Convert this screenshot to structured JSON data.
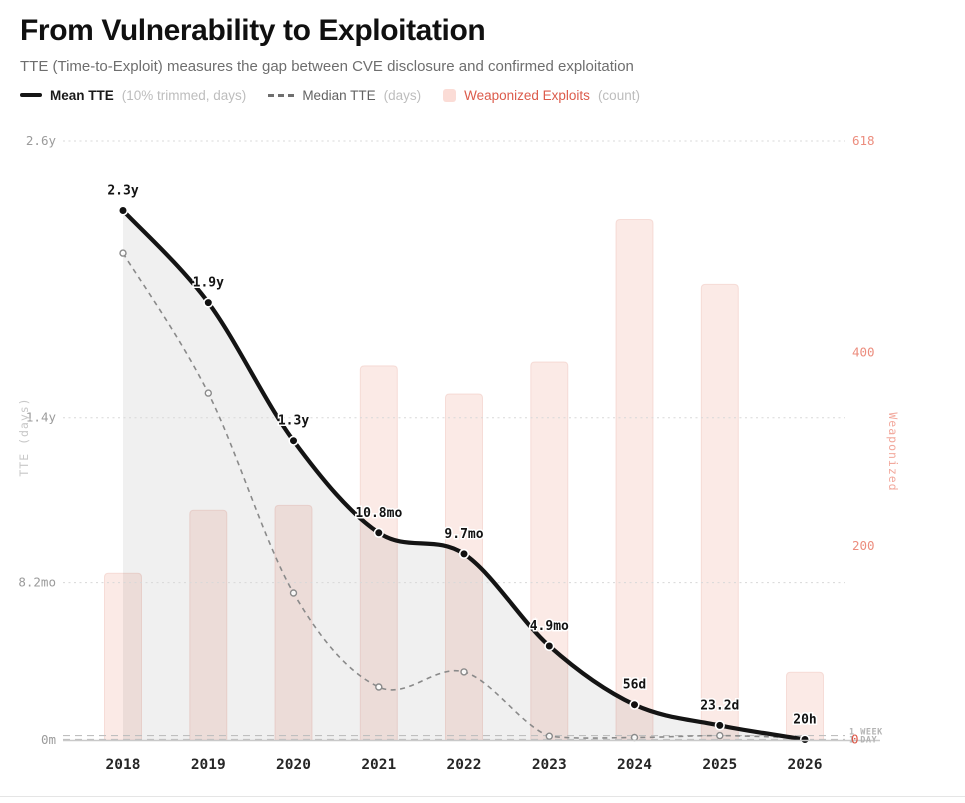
{
  "header": {
    "title": "From Vulnerability to Exploitation",
    "subtitle": "TTE (Time-to-Exploit) measures the gap between CVE disclosure and confirmed exploitation"
  },
  "legend": {
    "position": "top-left",
    "items": [
      {
        "id": "mean",
        "label": "Mean TTE",
        "sub": "(10% trimmed, days)",
        "swatch": "solid-line",
        "color": "#161616"
      },
      {
        "id": "median",
        "label": "Median TTE",
        "sub": "(days)",
        "swatch": "dashed-line",
        "color": "#8a8a8a"
      },
      {
        "id": "weaponized",
        "label": "Weaponized Exploits",
        "sub": "(count)",
        "swatch": "square",
        "color": "#fbdcd6",
        "label_color": "#dc5b4b"
      }
    ]
  },
  "chart_data": {
    "type": "combo (line + dashed line + bar, dual y-axes)",
    "categories": [
      "2018",
      "2019",
      "2020",
      "2021",
      "2022",
      "2023",
      "2024",
      "2025",
      "2026"
    ],
    "series": [
      {
        "name": "Mean TTE",
        "type": "line",
        "unit": "days",
        "axis": "left",
        "values": [
          839.5,
          693.5,
          474.5,
          328.5,
          295,
          149,
          56,
          23.2,
          0.83
        ],
        "point_labels": [
          "2.3y",
          "1.9y",
          "1.3y",
          "10.8mo",
          "9.7mo",
          "4.9mo",
          "56d",
          "23.2d",
          "20h"
        ]
      },
      {
        "name": "Median TTE",
        "type": "dashed-line",
        "unit": "days",
        "axis": "left",
        "values_estimated_from_pixels": true,
        "values": [
          772,
          550,
          233,
          84,
          108,
          6,
          4,
          7,
          3
        ]
      },
      {
        "name": "Weaponized Exploits",
        "type": "bar",
        "unit": "count",
        "axis": "right",
        "values_estimated_from_pixels": true,
        "values": [
          172,
          237,
          242,
          386,
          357,
          390,
          537,
          470,
          70
        ]
      }
    ],
    "left_axis": {
      "title": "TTE (days)",
      "max_days": 949.7,
      "ticks": [
        {
          "label": "2.6y",
          "days": 949.7
        },
        {
          "label": "1.4y",
          "days": 511
        },
        {
          "label": "8.2mo",
          "days": 249.5
        },
        {
          "label": "0m",
          "days": 0
        }
      ]
    },
    "right_axis": {
      "title": "Weaponized",
      "max": 618,
      "ticks": [
        {
          "label": "618",
          "value": 618
        },
        {
          "label": "400",
          "value": 400
        },
        {
          "label": "200",
          "value": 200
        },
        {
          "label": "0",
          "value": 0
        }
      ]
    },
    "reference_lines": [
      {
        "label": "1 WEEK",
        "days": 7
      },
      {
        "label": "1 DAY",
        "days": 1
      }
    ],
    "grid": "dotted horizontal gridlines",
    "area_fill_under_mean": true
  },
  "colors": {
    "mean_line": "#141414",
    "median_line": "#8a8a8a",
    "bar_fill": "#f9e3de",
    "bar_stroke": "#edbfb6",
    "area_fill": "rgba(45,45,40,0.07)",
    "gridline": "#d8d8d8",
    "axis_line": "#c9c9c9",
    "ref_line": "#bfbfbf",
    "right_axis_text": "#ec8d7e",
    "right_axis_zero": "#dd5546",
    "left_axis_text": "#9b9b9b"
  }
}
